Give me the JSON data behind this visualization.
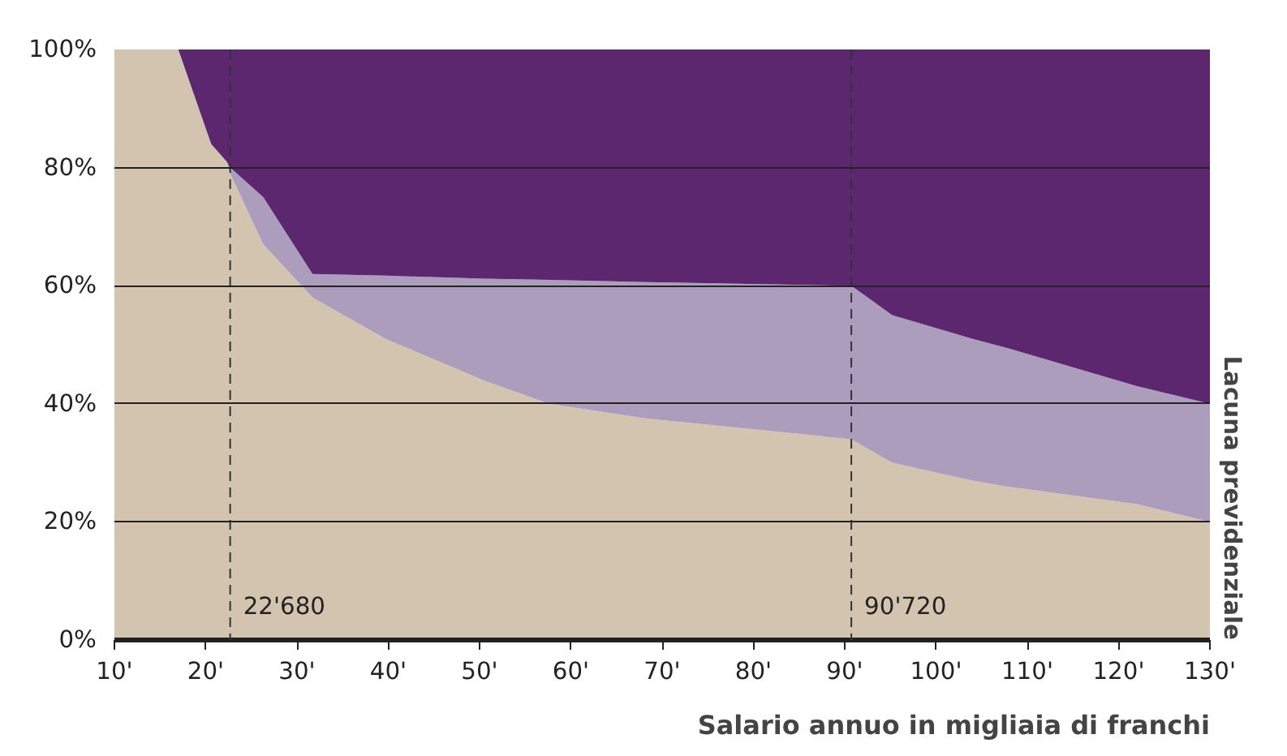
{
  "chart_data": {
    "type": "area",
    "stacked": true,
    "xlabel": "Salario annuo in migliaia di franchi",
    "annotations": [
      "Lacuna previdenziale"
    ],
    "x": [
      10,
      17,
      20.6,
      22.3,
      22.68,
      26.3,
      31.7,
      39.7,
      50.4,
      57.6,
      68.3,
      90.72,
      95.2,
      104,
      107.7,
      122,
      130
    ],
    "series": [
      {
        "color": "#d3c4b0",
        "values": [
          100,
          100,
          84,
          81,
          79,
          67,
          58,
          51,
          44,
          40,
          37.5,
          34,
          30,
          27,
          26,
          23,
          20
        ]
      },
      {
        "color": "#ad9dbd",
        "values": [
          0,
          0,
          0,
          0,
          1,
          8,
          4,
          10.7,
          17.2,
          21,
          23.1,
          26,
          25,
          24,
          23.5,
          20,
          20
        ]
      },
      {
        "color": "#5c276e",
        "values": [
          0,
          0,
          16,
          19,
          20,
          25,
          38,
          38.3,
          38.8,
          39,
          39.4,
          40,
          45,
          49,
          50.5,
          57,
          60
        ]
      }
    ],
    "xlim": [
      10,
      130
    ],
    "ylim": [
      0,
      100
    ],
    "xticks": [
      {
        "value": 10,
        "label": "10'"
      },
      {
        "value": 20,
        "label": "20'"
      },
      {
        "value": 30,
        "label": "30'"
      },
      {
        "value": 40,
        "label": "40'"
      },
      {
        "value": 50,
        "label": "50'"
      },
      {
        "value": 60,
        "label": "60'"
      },
      {
        "value": 70,
        "label": "70'"
      },
      {
        "value": 80,
        "label": "80'"
      },
      {
        "value": 90,
        "label": "90'"
      },
      {
        "value": 100,
        "label": "100'"
      },
      {
        "value": 110,
        "label": "110'"
      },
      {
        "value": 120,
        "label": "120'"
      },
      {
        "value": 130,
        "label": "130'"
      }
    ],
    "yticks": [
      {
        "value": 0,
        "label": "0%"
      },
      {
        "value": 20,
        "label": "20%"
      },
      {
        "value": 40,
        "label": "40%"
      },
      {
        "value": 60,
        "label": "60%"
      },
      {
        "value": 80,
        "label": "80%"
      },
      {
        "value": 100,
        "label": "100%"
      }
    ],
    "grid": "y",
    "ref_lines": [
      {
        "axis": "x",
        "value": 22.68,
        "label": "22'680",
        "line_style": "dashed",
        "color": "#333333"
      },
      {
        "axis": "x",
        "value": 90.72,
        "label": "90'720",
        "line_style": "dashed",
        "color": "#333333"
      }
    ]
  }
}
